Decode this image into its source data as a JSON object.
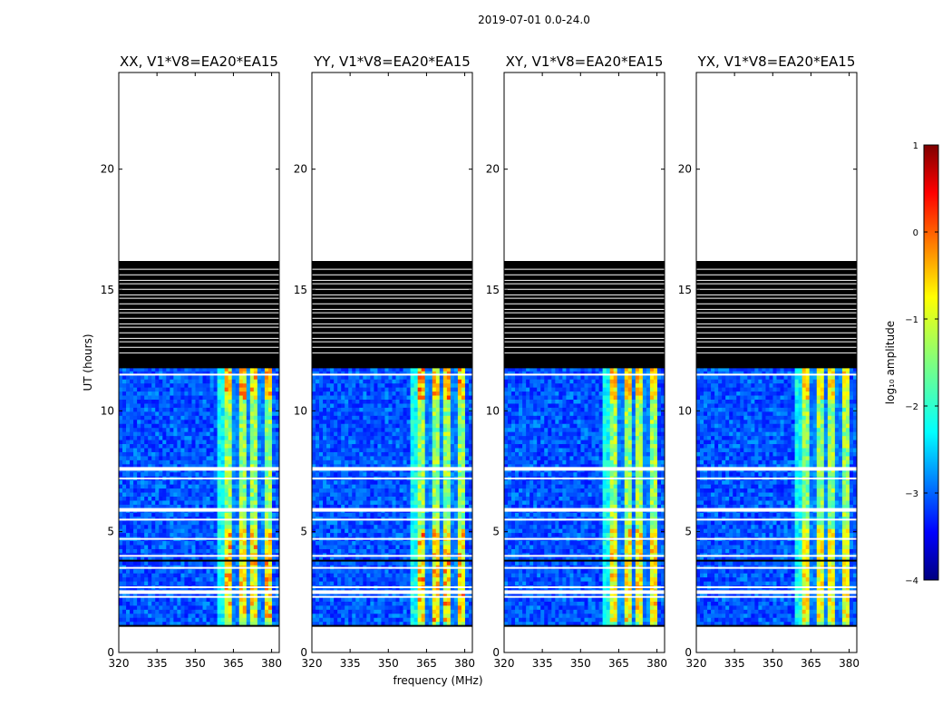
{
  "figure": {
    "suptitle": "2019-07-01 0.0-24.0",
    "xlabel": "frequency (MHz)",
    "ylabel": "UT (hours)"
  },
  "colorbar": {
    "label": "log₁₀ amplitude",
    "range": [
      -4,
      1
    ],
    "ticks": [
      1,
      0,
      -1,
      -2,
      -3,
      -4
    ],
    "tick_labels": [
      "1",
      "0",
      "−1",
      "−2",
      "−3",
      "−4"
    ],
    "colormap": "jet",
    "colors": [
      "#00007f",
      "#0000ff",
      "#007fff",
      "#00ffff",
      "#7fff7f",
      "#ffff00",
      "#ff7f00",
      "#ff0000",
      "#7f0000"
    ]
  },
  "chart_data": {
    "type": "heatmap",
    "xlim": [
      320,
      383
    ],
    "ylim": [
      0,
      24
    ],
    "x_ticks": [
      320,
      335,
      350,
      365,
      380
    ],
    "y_ticks": [
      0,
      5,
      10,
      15,
      20
    ],
    "data_extent_hours": [
      1.1,
      11.8
    ],
    "flagged_block_hours": [
      11.8,
      16.2
    ],
    "gap_hours": [
      2.3,
      2.5,
      2.7,
      3.5,
      4.0,
      4.7,
      5.5,
      5.9,
      7.2,
      7.6,
      11.5
    ],
    "signal_band_mhz": [
      362,
      380
    ],
    "panels": [
      {
        "title": "XX, V1*V8=EA20*EA15",
        "polarization": "XX",
        "signal_band_mhz": [
          362,
          380
        ],
        "peak_log_amplitude": 0.0
      },
      {
        "title": "YY, V1*V8=EA20*EA15",
        "polarization": "YY",
        "signal_band_mhz": [
          362,
          380
        ],
        "peak_log_amplitude": 0.2
      },
      {
        "title": "XY, V1*V8=EA20*EA15",
        "polarization": "XY",
        "signal_band_mhz": [
          362,
          380
        ],
        "peak_log_amplitude": -0.2
      },
      {
        "title": "YX, V1*V8=EA20*EA15",
        "polarization": "YX",
        "signal_band_mhz": [
          362,
          380
        ],
        "peak_log_amplitude": -0.6
      }
    ]
  }
}
